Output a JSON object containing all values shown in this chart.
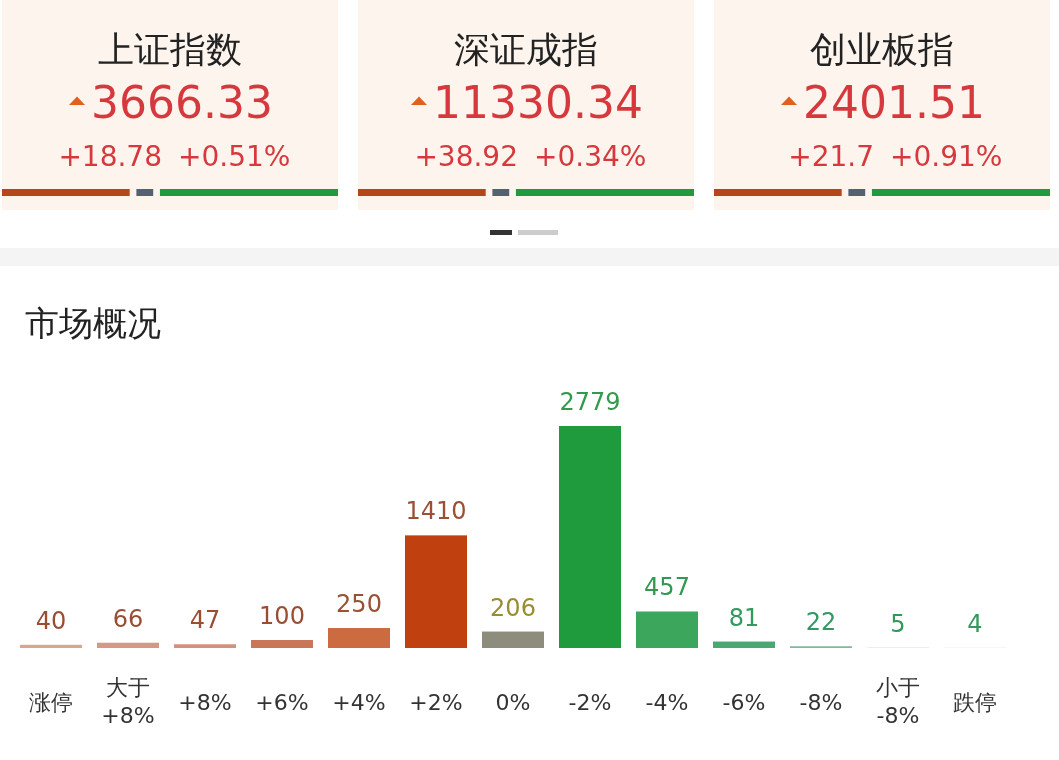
{
  "chart_data": [
    {
      "type": "other",
      "annotations": [
        "上证指数",
        "3666.33",
        "+18.78",
        "+0.51%",
        "深证成指",
        "11330.34",
        "+38.92",
        "+0.34%",
        "创业板指",
        "2401.51",
        "+21.7",
        "+0.91%"
      ]
    },
    {
      "type": "bar",
      "title": "市场概况",
      "categories": [
        "涨停",
        "大于\n+8%",
        "+8%",
        "+6%",
        "+4%",
        "+2%",
        "0%",
        "-2%",
        "-4%",
        "-6%",
        "-8%",
        "小于\n-8%",
        "跌停"
      ],
      "values": [
        40,
        66,
        47,
        100,
        250,
        1410,
        206,
        2779,
        457,
        81,
        22,
        5,
        4
      ],
      "colors": [
        "#dca38e",
        "#d69884",
        "#d3927c",
        "#c97658",
        "#cc6a40",
        "#c0400f",
        "#8e8c7c",
        "#1f9a3c",
        "#3ca65c",
        "#4aa872",
        "#7fba9c",
        "#c5dfcf",
        "#d6e8dd"
      ],
      "data_labels": true
    }
  ]
}
